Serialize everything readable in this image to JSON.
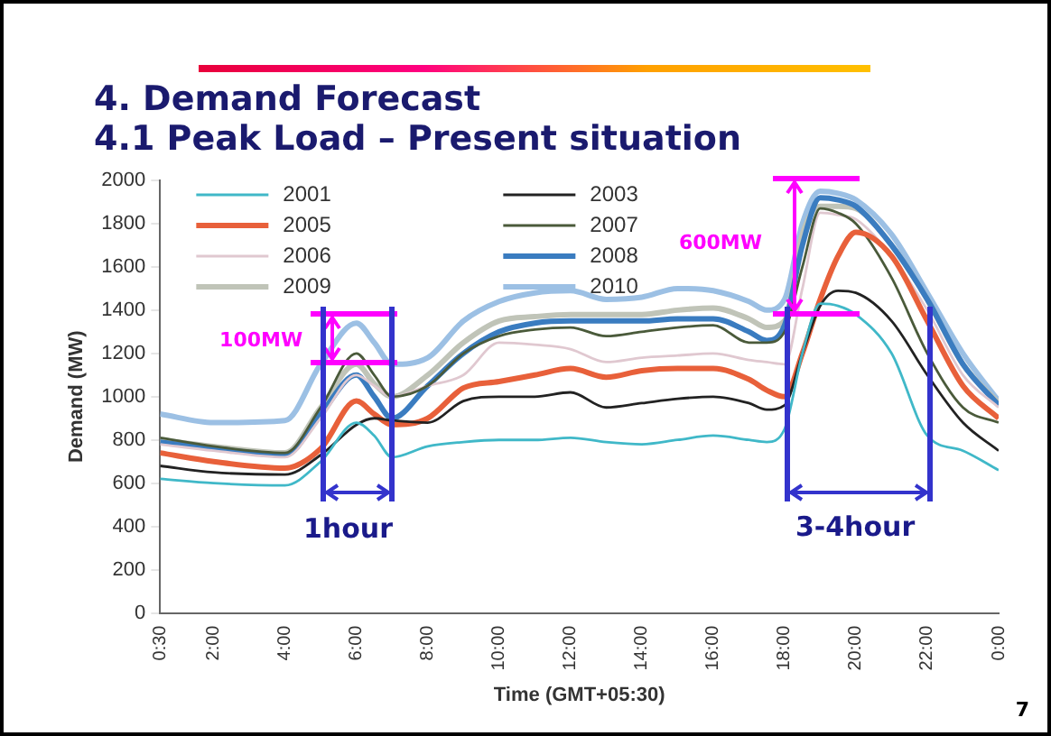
{
  "chart_data": {
    "type": "line",
    "title": "4. Demand Forecast",
    "subtitle": "4.1 Peak Load – Present situation",
    "xlabel": "Time (GMT+05:30)",
    "ylabel": "Demand (MW)",
    "x": [
      0.5,
      2,
      4,
      5,
      6,
      6.5,
      7,
      8,
      9,
      10,
      11,
      12,
      13,
      14,
      15,
      16,
      17,
      17.5,
      18,
      18.5,
      19,
      19.5,
      20,
      21,
      22,
      23,
      24
    ],
    "series": [
      {
        "name": "2001",
        "color": "#40b8c8",
        "values": [
          620,
          600,
          590,
          700,
          880,
          820,
          720,
          770,
          790,
          800,
          800,
          810,
          790,
          780,
          800,
          820,
          800,
          790,
          850,
          1200,
          1430,
          1420,
          1380,
          1200,
          820,
          750,
          660
        ]
      },
      {
        "name": "2003",
        "color": "#222222",
        "values": [
          680,
          650,
          640,
          730,
          870,
          900,
          890,
          880,
          980,
          1000,
          1000,
          1020,
          950,
          970,
          990,
          1000,
          970,
          940,
          960,
          1200,
          1420,
          1490,
          1480,
          1350,
          1100,
          880,
          750
        ]
      },
      {
        "name": "2005",
        "color": "#e8603a",
        "values": [
          740,
          700,
          670,
          760,
          980,
          920,
          870,
          900,
          1040,
          1070,
          1100,
          1130,
          1090,
          1120,
          1130,
          1130,
          1080,
          1030,
          1000,
          1200,
          1450,
          1650,
          1760,
          1650,
          1350,
          1050,
          900
        ]
      },
      {
        "name": "2007",
        "color": "#4a5a3a",
        "values": [
          810,
          770,
          740,
          950,
          1200,
          1100,
          1000,
          1050,
          1200,
          1280,
          1310,
          1320,
          1280,
          1300,
          1320,
          1330,
          1250,
          1250,
          1300,
          1600,
          1870,
          1850,
          1800,
          1550,
          1200,
          950,
          880
        ]
      },
      {
        "name": "2006",
        "color": "#e0c8d0",
        "values": [
          780,
          750,
          720,
          900,
          1100,
          1050,
          1000,
          1050,
          1100,
          1250,
          1240,
          1220,
          1160,
          1180,
          1190,
          1200,
          1170,
          1160,
          1150,
          1500,
          1850,
          1840,
          1820,
          1650,
          1400,
          1100,
          950
        ]
      },
      {
        "name": "2008",
        "color": "#3a7cc0",
        "values": [
          790,
          760,
          730,
          920,
          1100,
          1000,
          900,
          1050,
          1200,
          1300,
          1340,
          1350,
          1350,
          1350,
          1360,
          1360,
          1300,
          1260,
          1330,
          1700,
          1920,
          1910,
          1880,
          1700,
          1450,
          1150,
          960
        ]
      },
      {
        "name": "2009",
        "color": "#c0c4b8",
        "values": [
          800,
          770,
          740,
          950,
          1150,
          1060,
          1000,
          1100,
          1250,
          1350,
          1370,
          1380,
          1380,
          1380,
          1400,
          1410,
          1360,
          1320,
          1350,
          1750,
          1880,
          1880,
          1870,
          1700,
          1450,
          1150,
          970
        ]
      },
      {
        "name": "2010",
        "color": "#9cc0e4",
        "values": [
          920,
          880,
          890,
          1150,
          1340,
          1250,
          1150,
          1180,
          1350,
          1440,
          1480,
          1490,
          1450,
          1460,
          1500,
          1490,
          1440,
          1400,
          1450,
          1800,
          1950,
          1940,
          1910,
          1750,
          1480,
          1200,
          980
        ]
      }
    ],
    "xlim": [
      0.5,
      24
    ],
    "xticks": [
      {
        "value": 0.5,
        "label": "0:30"
      },
      {
        "value": 2,
        "label": "2:00"
      },
      {
        "value": 4,
        "label": "4:00"
      },
      {
        "value": 6,
        "label": "6:00"
      },
      {
        "value": 8,
        "label": "8:00"
      },
      {
        "value": 10,
        "label": "10:00"
      },
      {
        "value": 12,
        "label": "12:00"
      },
      {
        "value": 14,
        "label": "14:00"
      },
      {
        "value": 16,
        "label": "16:00"
      },
      {
        "value": 18,
        "label": "18:00"
      },
      {
        "value": 20,
        "label": "20:00"
      },
      {
        "value": 22,
        "label": "22:00"
      },
      {
        "value": 24,
        "label": "0:00"
      }
    ],
    "ylim": [
      0,
      2000
    ],
    "yticks": [
      0,
      200,
      400,
      600,
      800,
      1000,
      1200,
      1400,
      1600,
      1800,
      2000
    ],
    "annotations": [
      {
        "text": "100MW",
        "x": 5,
        "y": 1170
      },
      "600MW",
      "1hour",
      {
        "text": "3-4hour",
        "x": 18,
        "y": 800
      },
      "7"
    ],
    "grid": false,
    "legend": "top left",
    "marker": "none",
    "line_style": "solid"
  }
}
